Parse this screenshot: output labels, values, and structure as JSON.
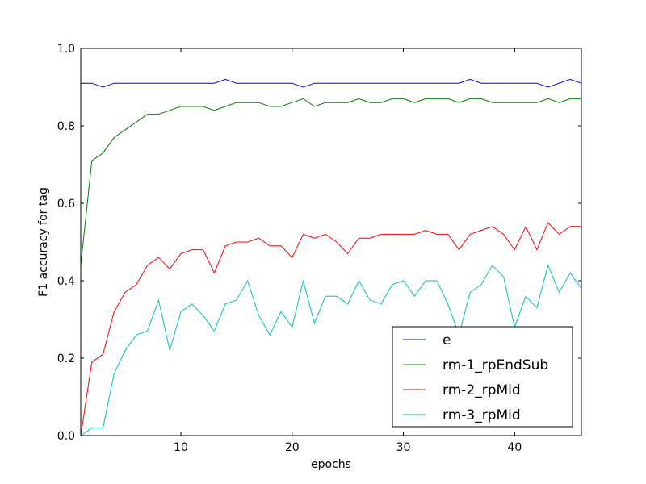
{
  "chart_data": {
    "type": "line",
    "xlabel": "epochs",
    "ylabel": "F1 accuracy for tag",
    "xlim": [
      1,
      46
    ],
    "ylim": [
      0.0,
      1.0
    ],
    "x_ticks": [
      10,
      20,
      30,
      40
    ],
    "y_ticks": [
      "0.0",
      "0.2",
      "0.4",
      "0.6",
      "0.8",
      "1.0"
    ],
    "grid": false,
    "legend_position": "lower-right",
    "x": [
      1,
      2,
      3,
      4,
      5,
      6,
      7,
      8,
      9,
      10,
      11,
      12,
      13,
      14,
      15,
      16,
      17,
      18,
      19,
      20,
      21,
      22,
      23,
      24,
      25,
      26,
      27,
      28,
      29,
      30,
      31,
      32,
      33,
      34,
      35,
      36,
      37,
      38,
      39,
      40,
      41,
      42,
      43,
      44,
      45,
      46
    ],
    "series": [
      {
        "name": "e",
        "color": "#0000ff",
        "values": [
          0.91,
          0.91,
          0.9,
          0.91,
          0.91,
          0.91,
          0.91,
          0.91,
          0.91,
          0.91,
          0.91,
          0.91,
          0.91,
          0.92,
          0.91,
          0.91,
          0.91,
          0.91,
          0.91,
          0.91,
          0.9,
          0.91,
          0.91,
          0.91,
          0.91,
          0.91,
          0.91,
          0.91,
          0.91,
          0.91,
          0.91,
          0.91,
          0.91,
          0.91,
          0.91,
          0.92,
          0.91,
          0.91,
          0.91,
          0.91,
          0.91,
          0.91,
          0.9,
          0.91,
          0.92,
          0.91
        ]
      },
      {
        "name": "rm-1_rpEndSub",
        "color": "#008000",
        "values": [
          0.44,
          0.71,
          0.73,
          0.77,
          0.79,
          0.81,
          0.83,
          0.83,
          0.84,
          0.85,
          0.85,
          0.85,
          0.84,
          0.85,
          0.86,
          0.86,
          0.86,
          0.85,
          0.85,
          0.86,
          0.87,
          0.85,
          0.86,
          0.86,
          0.86,
          0.87,
          0.86,
          0.86,
          0.87,
          0.87,
          0.86,
          0.87,
          0.87,
          0.87,
          0.86,
          0.87,
          0.87,
          0.86,
          0.86,
          0.86,
          0.86,
          0.86,
          0.87,
          0.86,
          0.87,
          0.87
        ]
      },
      {
        "name": "rm-2_rpMid",
        "color": "#ff0000",
        "values": [
          0.0,
          0.19,
          0.21,
          0.32,
          0.37,
          0.39,
          0.44,
          0.46,
          0.43,
          0.47,
          0.48,
          0.48,
          0.42,
          0.49,
          0.5,
          0.5,
          0.51,
          0.49,
          0.49,
          0.46,
          0.52,
          0.51,
          0.52,
          0.5,
          0.47,
          0.51,
          0.51,
          0.52,
          0.52,
          0.52,
          0.52,
          0.53,
          0.52,
          0.52,
          0.48,
          0.52,
          0.53,
          0.54,
          0.52,
          0.48,
          0.54,
          0.48,
          0.55,
          0.52,
          0.54,
          0.54
        ]
      },
      {
        "name": "rm-3_rpMid",
        "color": "#00bfbf",
        "values": [
          0.0,
          0.02,
          0.02,
          0.16,
          0.22,
          0.26,
          0.27,
          0.35,
          0.22,
          0.32,
          0.34,
          0.31,
          0.27,
          0.34,
          0.35,
          0.4,
          0.31,
          0.26,
          0.32,
          0.28,
          0.4,
          0.29,
          0.36,
          0.36,
          0.34,
          0.4,
          0.35,
          0.34,
          0.39,
          0.4,
          0.36,
          0.4,
          0.4,
          0.34,
          0.26,
          0.37,
          0.39,
          0.44,
          0.41,
          0.28,
          0.36,
          0.33,
          0.44,
          0.37,
          0.42,
          0.38
        ]
      }
    ]
  }
}
